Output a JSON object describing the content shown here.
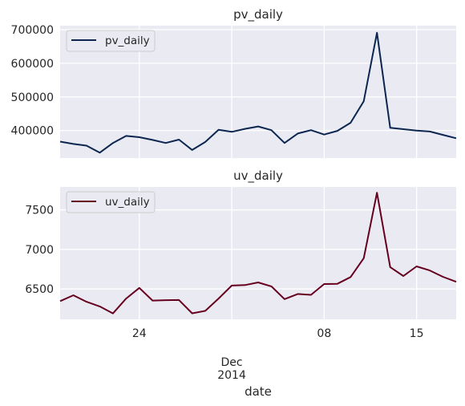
{
  "chart_data": [
    {
      "type": "line",
      "title": "pv_daily",
      "xlabel": "",
      "ylabel": "",
      "x": [
        "2014-11-18",
        "2014-11-19",
        "2014-11-20",
        "2014-11-21",
        "2014-11-22",
        "2014-11-23",
        "2014-11-24",
        "2014-11-25",
        "2014-11-26",
        "2014-11-27",
        "2014-11-28",
        "2014-11-29",
        "2014-11-30",
        "2014-12-01",
        "2014-12-02",
        "2014-12-03",
        "2014-12-04",
        "2014-12-05",
        "2014-12-06",
        "2014-12-07",
        "2014-12-08",
        "2014-12-09",
        "2014-12-10",
        "2014-12-11",
        "2014-12-12",
        "2014-12-13",
        "2014-12-14",
        "2014-12-15",
        "2014-12-16",
        "2014-12-17",
        "2014-12-18"
      ],
      "series": [
        {
          "name": "pv_daily",
          "values": [
            367000,
            360000,
            355000,
            334000,
            363000,
            384000,
            380000,
            372000,
            363000,
            373000,
            342000,
            366000,
            402000,
            396000,
            405000,
            412000,
            401000,
            363000,
            391000,
            401000,
            388000,
            399000,
            423000,
            487000,
            691000,
            408000,
            404000,
            400000,
            397000,
            387000,
            377000
          ]
        }
      ],
      "yticks": [
        "400000",
        "500000",
        "600000",
        "700000"
      ],
      "ylim": [
        318000,
        712000
      ],
      "legend": "top-left",
      "grid": true,
      "color": "#0c2650"
    },
    {
      "type": "line",
      "title": "uv_daily",
      "xlabel": "date",
      "ylabel": "",
      "x": [
        "2014-11-18",
        "2014-11-19",
        "2014-11-20",
        "2014-11-21",
        "2014-11-22",
        "2014-11-23",
        "2014-11-24",
        "2014-11-25",
        "2014-11-26",
        "2014-11-27",
        "2014-11-28",
        "2014-11-29",
        "2014-11-30",
        "2014-12-01",
        "2014-12-02",
        "2014-12-03",
        "2014-12-04",
        "2014-12-05",
        "2014-12-06",
        "2014-12-07",
        "2014-12-08",
        "2014-12-09",
        "2014-12-10",
        "2014-12-11",
        "2014-12-12",
        "2014-12-13",
        "2014-12-14",
        "2014-12-15",
        "2014-12-16",
        "2014-12-17",
        "2014-12-18"
      ],
      "series": [
        {
          "name": "uv_daily",
          "values": [
            6345,
            6420,
            6337,
            6278,
            6190,
            6378,
            6513,
            6353,
            6358,
            6360,
            6191,
            6223,
            6378,
            6542,
            6548,
            6582,
            6532,
            6371,
            6436,
            6425,
            6562,
            6565,
            6650,
            6889,
            7717,
            6776,
            6663,
            6785,
            6733,
            6653,
            6590
          ]
        }
      ],
      "yticks": [
        "6500",
        "7000",
        "7500"
      ],
      "ylim": [
        6115,
        7790
      ],
      "legend": "top-left",
      "grid": true,
      "color": "#67001f"
    }
  ],
  "xaxis": {
    "tick_labels": [
      {
        "date": "2014-11-24",
        "label": "24"
      },
      {
        "date": "2014-12-08",
        "label": "08"
      },
      {
        "date": "2014-12-15",
        "label": "15"
      }
    ],
    "minor_label": {
      "date": "2014-12-01",
      "month": "Dec",
      "year": "2014"
    },
    "label": "date"
  }
}
